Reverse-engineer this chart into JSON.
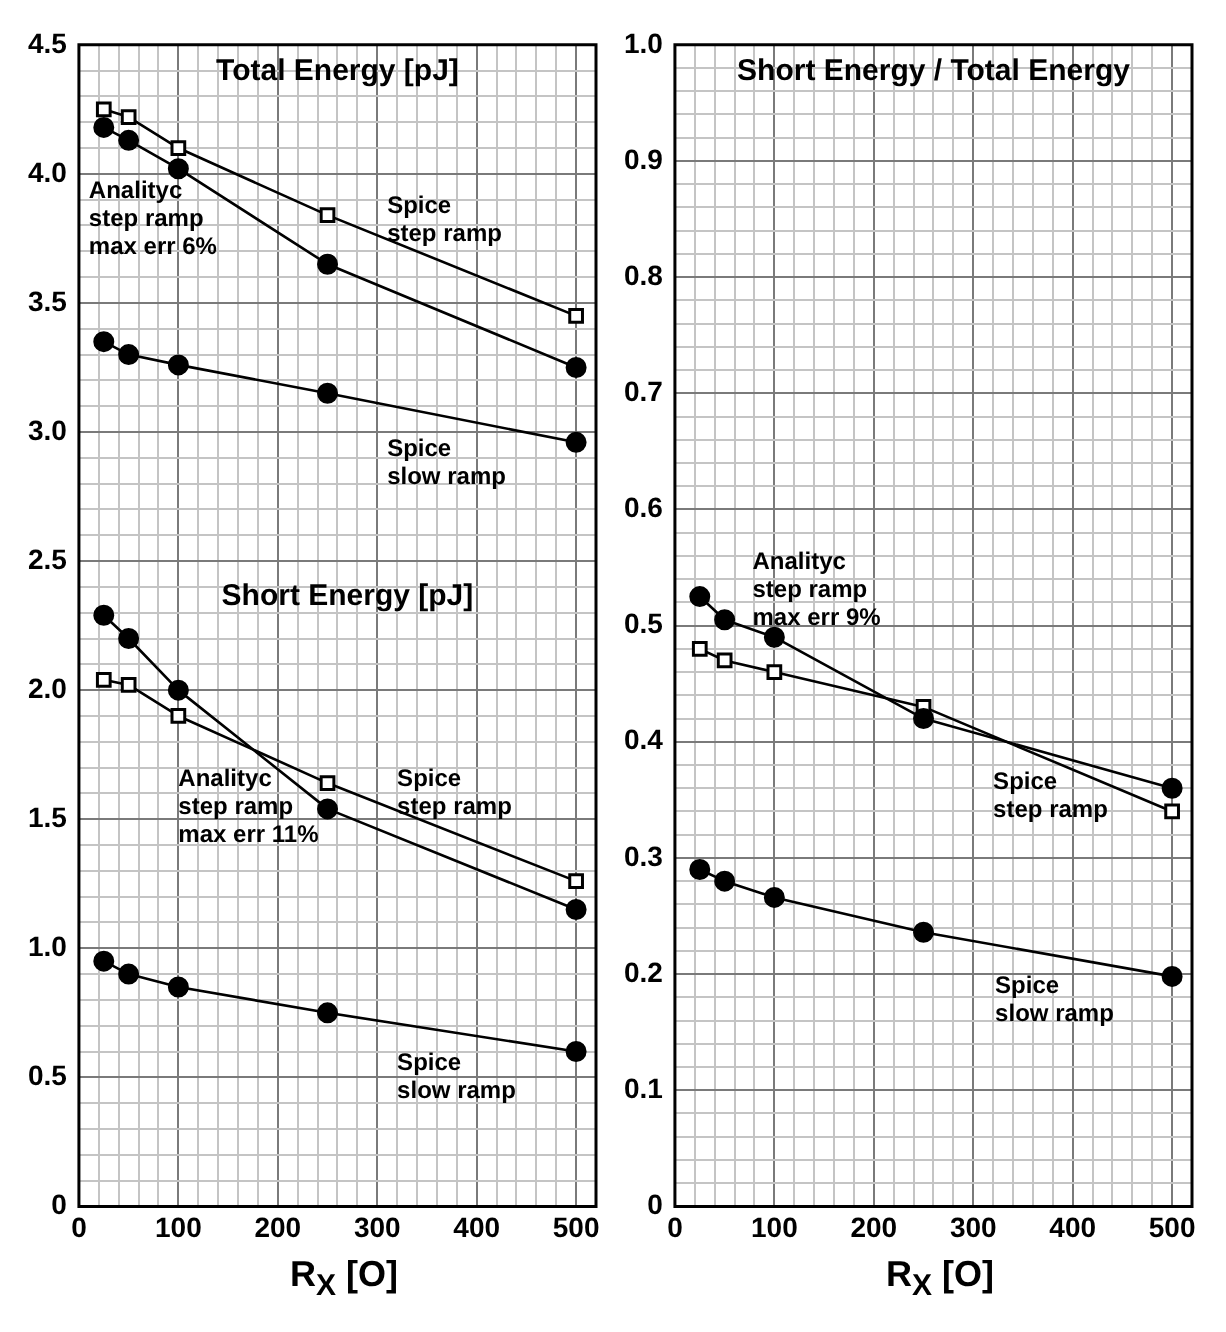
{
  "chart_data": [
    {
      "type": "line",
      "title": "Total Energy [pJ]",
      "xlabel": "R$_{X}$ [O]",
      "x": [
        25,
        50,
        100,
        250,
        500
      ],
      "series": [
        {
          "color": "#000000",
          "marker": "square",
          "values": [
            4.25,
            4.22,
            4.1,
            3.84,
            3.45
          ]
        },
        {
          "color": "#000000",
          "marker": "circle",
          "values": [
            4.18,
            4.13,
            4.02,
            3.65,
            3.25
          ]
        },
        {
          "color": "#000000",
          "marker": "circle",
          "values": [
            3.35,
            3.3,
            3.26,
            3.15,
            2.96
          ]
        },
        {
          "color": "#000000",
          "marker": "square",
          "values": [
            2.04,
            2.02,
            1.9,
            1.64,
            1.26
          ]
        },
        {
          "color": "#000000",
          "marker": "circle",
          "values": [
            2.29,
            2.2,
            2.0,
            1.54,
            1.15
          ]
        },
        {
          "color": "#000000",
          "marker": "circle",
          "values": [
            0.95,
            0.9,
            0.85,
            0.75,
            0.6
          ]
        }
      ],
      "annotations": [
        "Short Energy [pJ]",
        "Analityc\nstep ramp\nmax err 6%",
        "Spice\nstep ramp",
        "Spice\nslow ramp",
        "Analityc\nstep ramp\nmax err 11%",
        "Spice\nstep ramp",
        "Spice\nslow ramp"
      ],
      "xlim": [
        0,
        520
      ],
      "xticks": [
        0,
        {
          "value": 20,
          "label": null
        },
        {
          "value": 40,
          "label": null
        },
        {
          "value": 60,
          "label": null
        },
        {
          "value": 80,
          "label": null
        },
        100,
        {
          "value": 120,
          "label": null
        },
        {
          "value": 140,
          "label": null
        },
        {
          "value": 160,
          "label": null
        },
        {
          "value": 180,
          "label": null
        },
        200,
        {
          "value": 220,
          "label": null
        },
        {
          "value": 240,
          "label": null
        },
        {
          "value": 260,
          "label": null
        },
        {
          "value": 280,
          "label": null
        },
        300,
        {
          "value": 320,
          "label": null
        },
        {
          "value": 340,
          "label": null
        },
        {
          "value": 360,
          "label": null
        },
        {
          "value": 380,
          "label": null
        },
        400,
        {
          "value": 420,
          "label": null
        },
        {
          "value": 440,
          "label": null
        },
        {
          "value": 460,
          "label": null
        },
        {
          "value": 480,
          "label": null
        },
        500
      ],
      "ylim": [
        0,
        4.5
      ],
      "yticks": [
        0,
        {
          "value": 0.1,
          "label": null
        },
        {
          "value": 0.2,
          "label": null
        },
        {
          "value": 0.3,
          "label": null
        },
        {
          "value": 0.4,
          "label": null
        },
        0.5,
        {
          "value": 0.6,
          "label": null
        },
        {
          "value": 0.7,
          "label": null
        },
        {
          "value": 0.8,
          "label": null
        },
        {
          "value": 0.9,
          "label": null
        },
        {
          "value": 1,
          "label": "1.0"
        },
        {
          "value": 1.1,
          "label": null
        },
        {
          "value": 1.2,
          "label": null
        },
        {
          "value": 1.3,
          "label": null
        },
        {
          "value": 1.4,
          "label": null
        },
        1.5,
        {
          "value": 1.6,
          "label": null
        },
        {
          "value": 1.7,
          "label": null
        },
        {
          "value": 1.8,
          "label": null
        },
        {
          "value": 1.9,
          "label": null
        },
        {
          "value": 2,
          "label": "2.0"
        },
        {
          "value": 2.1,
          "label": null
        },
        {
          "value": 2.2,
          "label": null
        },
        {
          "value": 2.3,
          "label": null
        },
        {
          "value": 2.4,
          "label": null
        },
        2.5,
        {
          "value": 2.6,
          "label": null
        },
        {
          "value": 2.7,
          "label": null
        },
        {
          "value": 2.8,
          "label": null
        },
        {
          "value": 2.9,
          "label": null
        },
        {
          "value": 3,
          "label": "3.0"
        },
        {
          "value": 3.1,
          "label": null
        },
        {
          "value": 3.2,
          "label": null
        },
        {
          "value": 3.3,
          "label": null
        },
        {
          "value": 3.4,
          "label": null
        },
        3.5,
        {
          "value": 3.6,
          "label": null
        },
        {
          "value": 3.7,
          "label": null
        },
        {
          "value": 3.8,
          "label": null
        },
        {
          "value": 3.9,
          "label": null
        },
        {
          "value": 4,
          "label": "4.0"
        },
        {
          "value": 4.1,
          "label": null
        },
        {
          "value": 4.2,
          "label": null
        },
        {
          "value": 4.3,
          "label": null
        },
        {
          "value": 4.4,
          "label": null
        },
        4.5
      ],
      "grid": true
    },
    {
      "type": "line",
      "title": "Short Energy / Total Energy",
      "xlabel": "R$_{X}$ [O]",
      "x": [
        25,
        50,
        100,
        250,
        500
      ],
      "series": [
        {
          "color": "#000000",
          "marker": "circle",
          "values": [
            0.525,
            0.505,
            0.49,
            0.42,
            0.36
          ]
        },
        {
          "color": "#000000",
          "marker": "square",
          "values": [
            0.48,
            0.47,
            0.46,
            0.43,
            0.34
          ]
        },
        {
          "color": "#000000",
          "marker": "circle",
          "values": [
            0.29,
            0.28,
            0.266,
            0.236,
            0.198
          ]
        }
      ],
      "annotations": [
        "Analityc\nstep ramp\nmax err 9%",
        "Spice\nstep ramp",
        "Spice\nslow ramp"
      ],
      "xlim": [
        0,
        520
      ],
      "xticks": [
        0,
        {
          "value": 20,
          "label": null
        },
        {
          "value": 40,
          "label": null
        },
        {
          "value": 60,
          "label": null
        },
        {
          "value": 80,
          "label": null
        },
        100,
        {
          "value": 120,
          "label": null
        },
        {
          "value": 140,
          "label": null
        },
        {
          "value": 160,
          "label": null
        },
        {
          "value": 180,
          "label": null
        },
        200,
        {
          "value": 220,
          "label": null
        },
        {
          "value": 240,
          "label": null
        },
        {
          "value": 260,
          "label": null
        },
        {
          "value": 280,
          "label": null
        },
        300,
        {
          "value": 320,
          "label": null
        },
        {
          "value": 340,
          "label": null
        },
        {
          "value": 360,
          "label": null
        },
        {
          "value": 380,
          "label": null
        },
        400,
        {
          "value": 420,
          "label": null
        },
        {
          "value": 440,
          "label": null
        },
        {
          "value": 460,
          "label": null
        },
        {
          "value": 480,
          "label": null
        },
        500
      ],
      "ylim": [
        0,
        1
      ],
      "yticks": [
        0,
        {
          "value": 0.02,
          "label": null
        },
        {
          "value": 0.04,
          "label": null
        },
        {
          "value": 0.06,
          "label": null
        },
        {
          "value": 0.08,
          "label": null
        },
        0.1,
        {
          "value": 0.12,
          "label": null
        },
        {
          "value": 0.14,
          "label": null
        },
        {
          "value": 0.16,
          "label": null
        },
        {
          "value": 0.18,
          "label": null
        },
        0.2,
        {
          "value": 0.22,
          "label": null
        },
        {
          "value": 0.24,
          "label": null
        },
        {
          "value": 0.26,
          "label": null
        },
        {
          "value": 0.28,
          "label": null
        },
        0.3,
        {
          "value": 0.32,
          "label": null
        },
        {
          "value": 0.34,
          "label": null
        },
        {
          "value": 0.36,
          "label": null
        },
        {
          "value": 0.38,
          "label": null
        },
        0.4,
        {
          "value": 0.42,
          "label": null
        },
        {
          "value": 0.44,
          "label": null
        },
        {
          "value": 0.46,
          "label": null
        },
        {
          "value": 0.48,
          "label": null
        },
        0.5,
        {
          "value": 0.52,
          "label": null
        },
        {
          "value": 0.54,
          "label": null
        },
        {
          "value": 0.56,
          "label": null
        },
        {
          "value": 0.58,
          "label": null
        },
        0.6,
        {
          "value": 0.62,
          "label": null
        },
        {
          "value": 0.64,
          "label": null
        },
        {
          "value": 0.66,
          "label": null
        },
        {
          "value": 0.68,
          "label": null
        },
        0.7,
        {
          "value": 0.72,
          "label": null
        },
        {
          "value": 0.74,
          "label": null
        },
        {
          "value": 0.76,
          "label": null
        },
        {
          "value": 0.78,
          "label": null
        },
        0.8,
        {
          "value": 0.82,
          "label": null
        },
        {
          "value": 0.84,
          "label": null
        },
        {
          "value": 0.86,
          "label": null
        },
        {
          "value": 0.88,
          "label": null
        },
        0.9,
        {
          "value": 0.92,
          "label": null
        },
        {
          "value": 0.94,
          "label": null
        },
        {
          "value": 0.96,
          "label": null
        },
        {
          "value": 0.98,
          "label": null
        },
        {
          "value": 1,
          "label": "1.0"
        }
      ],
      "grid": true
    }
  ]
}
